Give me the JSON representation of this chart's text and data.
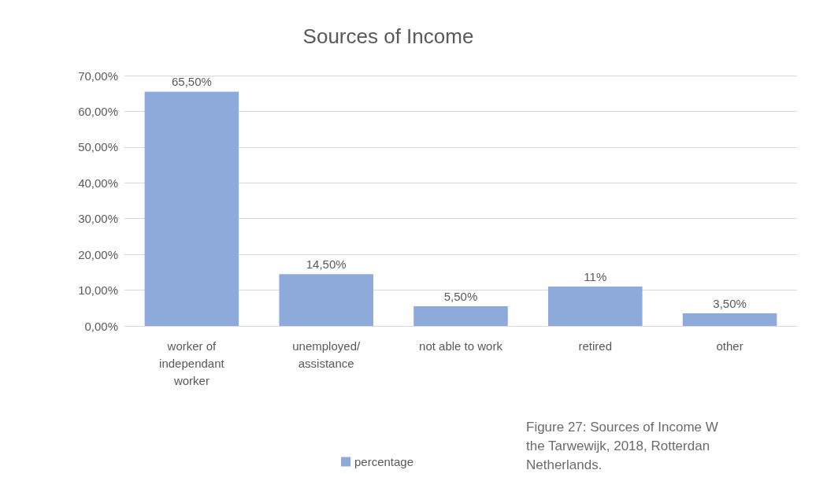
{
  "chart_data": {
    "type": "bar",
    "title": "Sources of Income",
    "categories": [
      "worker of\nindependant\nworker",
      "unemployed/\nassistance",
      "not able to work",
      "retired",
      "other"
    ],
    "series": [
      {
        "name": "percentage",
        "color": "#8eaadb",
        "values": [
          65.5,
          14.5,
          5.5,
          11,
          3.5
        ],
        "value_labels": [
          "65,50%",
          "14,50%",
          "5,50%",
          "11%",
          "3,50%"
        ]
      }
    ],
    "ylim": [
      0,
      70
    ],
    "yticks": [
      {
        "value": 0,
        "label": "0,00%"
      },
      {
        "value": 10,
        "label": "10,00%"
      },
      {
        "value": 20,
        "label": "20,00%"
      },
      {
        "value": 30,
        "label": "30,00%"
      },
      {
        "value": 40,
        "label": "40,00%"
      },
      {
        "value": 50,
        "label": "50,00%"
      },
      {
        "value": 60,
        "label": "60,00%"
      },
      {
        "value": 70,
        "label": "70,00%"
      }
    ],
    "grid": "y",
    "legend": "bottom",
    "annotations": [
      "Figure 27: Sources of Income W\nthe Tarwewijk, 2018, Rotterdan\nNetherlands."
    ]
  }
}
